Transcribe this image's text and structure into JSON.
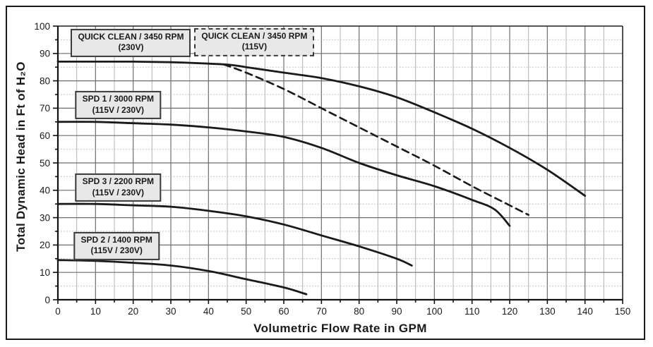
{
  "chart_data": {
    "type": "line",
    "title": "",
    "xlabel": "Volumetric Flow Rate in GPM",
    "ylabel": "Total Dynamic Head in Ft of H₂O",
    "x_axis": {
      "min": 0,
      "max": 150,
      "major_step": 10,
      "minor_step": 5
    },
    "y_axis": {
      "min": 0,
      "max": 100,
      "major_step": 10,
      "minor_step": 5
    },
    "grid": {
      "on": true,
      "major_color": "#6e6e6e",
      "minor_color": "#b4b4b4"
    },
    "frame_color": "#2a2a2a",
    "axis_color": "#111111",
    "curve_color": "#1a1a1a",
    "legend_position": "inline-boxes",
    "series": [
      {
        "name": "QUICK CLEAN / 3450 RPM (230V)",
        "style": "solid",
        "points": [
          [
            0,
            87
          ],
          [
            10,
            87
          ],
          [
            20,
            87
          ],
          [
            30,
            86.8
          ],
          [
            40,
            86.3
          ],
          [
            46,
            85.8
          ],
          [
            50,
            85
          ],
          [
            60,
            83
          ],
          [
            70,
            81
          ],
          [
            80,
            78
          ],
          [
            90,
            74
          ],
          [
            100,
            68.5
          ],
          [
            110,
            62.5
          ],
          [
            120,
            55.5
          ],
          [
            130,
            47.5
          ],
          [
            140,
            38
          ]
        ]
      },
      {
        "name": "QUICK CLEAN / 3450 RPM (115V)",
        "style": "dashed",
        "points": [
          [
            44,
            86
          ],
          [
            50,
            83
          ],
          [
            60,
            77
          ],
          [
            70,
            70
          ],
          [
            80,
            63
          ],
          [
            90,
            56
          ],
          [
            100,
            49
          ],
          [
            110,
            41.5
          ],
          [
            120,
            34.5
          ],
          [
            125,
            31
          ]
        ]
      },
      {
        "name": "SPD 1 / 3000 RPM (115V / 230V)",
        "style": "solid",
        "points": [
          [
            0,
            65
          ],
          [
            10,
            65
          ],
          [
            20,
            64.5
          ],
          [
            30,
            64
          ],
          [
            40,
            63
          ],
          [
            50,
            61.5
          ],
          [
            60,
            59.5
          ],
          [
            70,
            55.5
          ],
          [
            80,
            50
          ],
          [
            90,
            45.5
          ],
          [
            100,
            41.5
          ],
          [
            110,
            36.5
          ],
          [
            116,
            33
          ],
          [
            120,
            27
          ]
        ]
      },
      {
        "name": "SPD 3 / 2200 RPM (115V / 230V)",
        "style": "solid",
        "points": [
          [
            0,
            35
          ],
          [
            10,
            35
          ],
          [
            20,
            34.5
          ],
          [
            30,
            34
          ],
          [
            40,
            32.5
          ],
          [
            50,
            30.5
          ],
          [
            60,
            27.5
          ],
          [
            70,
            23.5
          ],
          [
            80,
            19.5
          ],
          [
            90,
            15
          ],
          [
            94,
            12.5
          ]
        ]
      },
      {
        "name": "SPD 2 / 1400 RPM (115V / 230V)",
        "style": "solid",
        "points": [
          [
            0,
            14.5
          ],
          [
            10,
            14.2
          ],
          [
            20,
            13.5
          ],
          [
            30,
            12.5
          ],
          [
            40,
            10.5
          ],
          [
            50,
            7.5
          ],
          [
            60,
            4.5
          ],
          [
            66,
            2
          ]
        ]
      }
    ],
    "labels": [
      {
        "lines": [
          "QUICK CLEAN / 3450 RPM",
          "(230V)"
        ],
        "border": "solid",
        "at": [
          19.4,
          93.9
        ]
      },
      {
        "lines": [
          "QUICK CLEAN / 3450 RPM",
          "(115V)"
        ],
        "border": "dashed",
        "at": [
          52.2,
          94.1
        ]
      },
      {
        "lines": [
          "SPD 1 / 3000 RPM",
          "(115V / 230V)"
        ],
        "border": "solid",
        "at": [
          16,
          71.1
        ]
      },
      {
        "lines": [
          "SPD 3 / 2200 RPM",
          "(115V / 230V)"
        ],
        "border": "solid",
        "at": [
          16,
          41.0
        ]
      },
      {
        "lines": [
          "SPD 2 / 1400 RPM",
          "(115V / 230V)"
        ],
        "border": "solid",
        "at": [
          15.6,
          19.7
        ]
      }
    ]
  }
}
